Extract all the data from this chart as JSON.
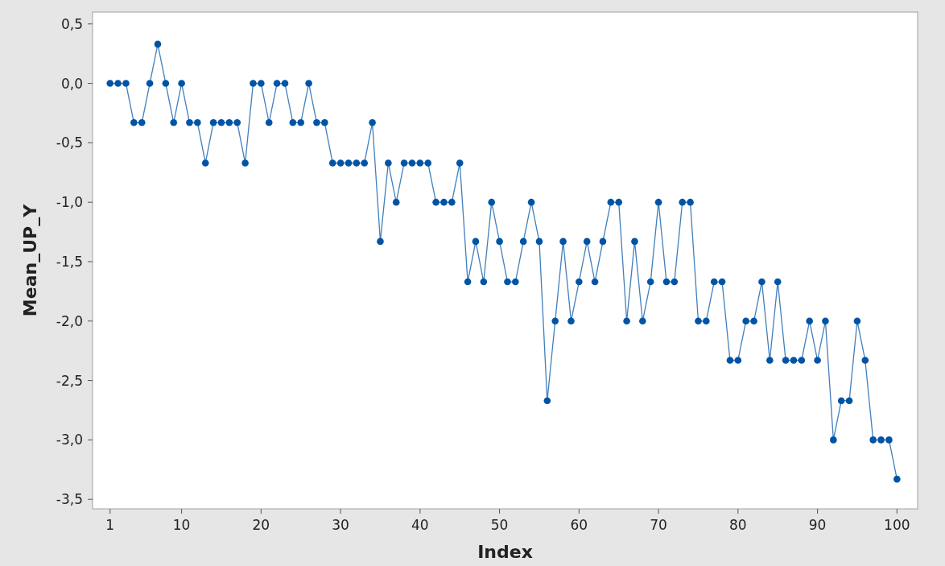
{
  "chart_data": {
    "type": "line",
    "xlabel": "Index",
    "ylabel": "Mean_UP_Y",
    "x": [
      1,
      2,
      3,
      4,
      5,
      6,
      7,
      8,
      9,
      10,
      11,
      12,
      13,
      14,
      15,
      16,
      17,
      18,
      19,
      20,
      21,
      22,
      23,
      24,
      25,
      26,
      27,
      28,
      29,
      30,
      31,
      32,
      33,
      34,
      35,
      36,
      37,
      38,
      39,
      40,
      41,
      42,
      43,
      44,
      45,
      46,
      47,
      48,
      49,
      50,
      51,
      52,
      53,
      54,
      55,
      56,
      57,
      58,
      59,
      60,
      61,
      62,
      63,
      64,
      65,
      66,
      67,
      68,
      69,
      70,
      71,
      72,
      73,
      74,
      75,
      76,
      77,
      78,
      79,
      80,
      81,
      82,
      83,
      84,
      85,
      86,
      87,
      88,
      89,
      90,
      91,
      92,
      93,
      94,
      95,
      96,
      97,
      98,
      99,
      100
    ],
    "series": [
      {
        "color": "#0054a6",
        "values": [
          0,
          0,
          0,
          -0.33,
          -0.33,
          0,
          0.33,
          0,
          -0.33,
          0,
          -0.33,
          -0.33,
          -0.67,
          -0.33,
          -0.33,
          -0.33,
          -0.33,
          -0.67,
          0,
          0,
          -0.33,
          0,
          0,
          -0.33,
          -0.33,
          0,
          -0.33,
          -0.33,
          -0.67,
          -0.67,
          -0.67,
          -0.67,
          -0.67,
          -0.33,
          -1.33,
          -0.67,
          -1,
          -0.67,
          -0.67,
          -0.67,
          -0.67,
          -1,
          -1,
          -1,
          -0.67,
          -1.67,
          -1.33,
          -1.67,
          -1,
          -1.33,
          -1.67,
          -1.67,
          -1.33,
          -1,
          -1.33,
          -2.67,
          -2,
          -1.33,
          -2,
          -1.67,
          -1.33,
          -1.67,
          -1.33,
          -1,
          -1,
          -2,
          -1.33,
          -2,
          -1.67,
          -1,
          -1.67,
          -1.67,
          -1,
          -1,
          -2,
          -2,
          -1.67,
          -1.67,
          -2.33,
          -2.33,
          -2,
          -2,
          -1.67,
          -2.33,
          -1.67,
          -2.33,
          -2.33,
          -2.33,
          -2,
          -2.33,
          -2,
          -3,
          -2.67,
          -2.67,
          -2,
          -2.33,
          -3,
          -3,
          -3,
          -3.33
        ]
      }
    ],
    "xlim": [
      -1.2,
      102.6
    ],
    "ylim": [
      -3.58,
      0.6
    ],
    "xticks": [
      1,
      10,
      20,
      30,
      40,
      50,
      60,
      70,
      80,
      90,
      100
    ],
    "yticks": [
      {
        "value": 0.5,
        "label": "0,5"
      },
      {
        "value": 0,
        "label": "0,0"
      },
      {
        "value": -0.5,
        "label": "-0,5"
      },
      {
        "value": -1,
        "label": "-1,0"
      },
      {
        "value": -1.5,
        "label": "-1,5"
      },
      {
        "value": -2,
        "label": "-2,0"
      },
      {
        "value": -2.5,
        "label": "-2,5"
      },
      {
        "value": -3,
        "label": "-3,0"
      },
      {
        "value": -3.5,
        "label": "-3,5"
      }
    ],
    "marker": "circle",
    "line_style": "solid",
    "grid": false
  }
}
